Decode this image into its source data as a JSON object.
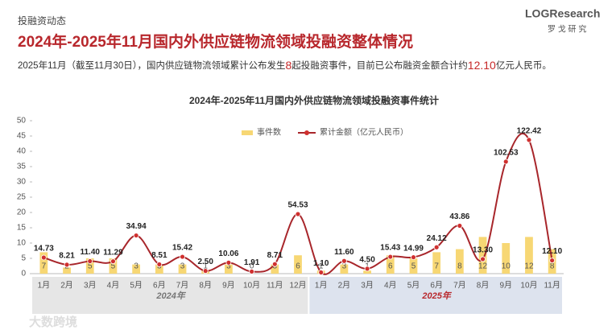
{
  "header": {
    "section": "投融资动态",
    "title": "2024年-2025年11月国内外供应链物流领域投融资整体情况",
    "summary": [
      "2025年11月（截至11月30日），国内供应链物流领域累计公布发生",
      "8",
      "起投融资事件，目前已公布融资金额合计约",
      "12.10",
      "亿元人民币。"
    ],
    "logo": "LOGResearch",
    "logo_sub": "罗 戈 研 究",
    "watermark": "大数跨境"
  },
  "chart_data": {
    "type": "bar_line",
    "title": "2024年-2025年11月国内外供应链物流领域投融资事件统计",
    "categories": [
      "1月",
      "2月",
      "3月",
      "4月",
      "5月",
      "6月",
      "7月",
      "8月",
      "9月",
      "10月",
      "11月",
      "12月",
      "1月",
      "2月",
      "3月",
      "4月",
      "5月",
      "6月",
      "7月",
      "8月",
      "9月",
      "10月",
      "11月"
    ],
    "groups": [
      {
        "label": "2024年",
        "count": 12
      },
      {
        "label": "2025年",
        "count": 11
      }
    ],
    "series": [
      {
        "name": "事件数",
        "color": "#f7d774",
        "values": [
          7,
          2,
          5,
          5,
          3,
          3,
          3,
          1,
          3,
          0,
          3,
          6,
          1,
          3,
          1,
          6,
          5,
          7,
          8,
          12,
          10,
          12,
          8
        ]
      },
      {
        "name": "累计金额（亿元人民币）",
        "color": "#a8262b",
        "axis": "y2",
        "values": [
          14.73,
          8.21,
          11.4,
          11.29,
          34.94,
          8.51,
          15.42,
          2.5,
          10.06,
          1.91,
          8.71,
          54.53,
          1.1,
          11.6,
          4.5,
          15.43,
          14.99,
          24.12,
          43.86,
          13.3,
          102.53,
          122.42,
          12.1
        ],
        "value_labels": [
          "14.73",
          "8.21",
          "11.40",
          "11.29",
          "34.94",
          "8.51",
          "15.42",
          "2.50",
          "10.06",
          "1.91",
          "8.71",
          "54.53",
          "1.10",
          "11.60",
          "4.50",
          "15.43",
          "14.99",
          "24.12",
          "43.86",
          "13.30",
          "102.53",
          "122.42",
          "12.10"
        ]
      }
    ],
    "ylim": [
      0,
      50
    ],
    "yticks": [
      0,
      5,
      10,
      15,
      20,
      25,
      30,
      35,
      40,
      45,
      50
    ],
    "y2lim": [
      0,
      140
    ]
  }
}
